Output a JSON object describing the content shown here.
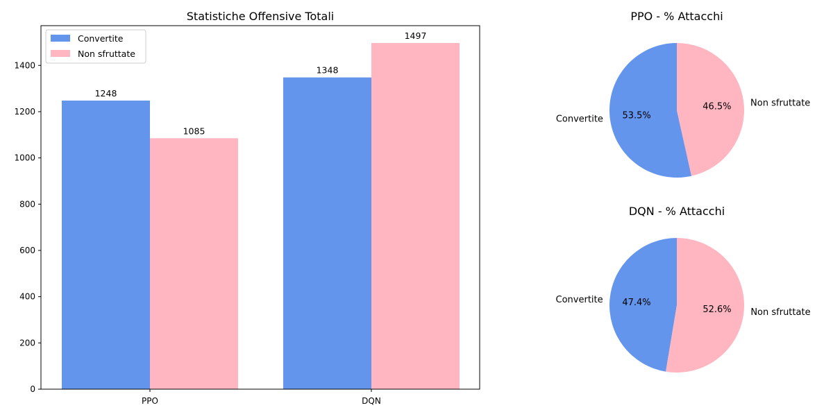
{
  "chart_data": [
    {
      "type": "bar",
      "title": "Statistiche Offensive Totali",
      "xlabel": "",
      "ylabel": "",
      "categories": [
        "PPO",
        "DQN"
      ],
      "series": [
        {
          "name": "Convertite",
          "values": [
            1248,
            1348
          ],
          "color": "#6495ED"
        },
        {
          "name": "Non sfruttate",
          "values": [
            1085,
            1497
          ],
          "color": "#FFB6C1"
        }
      ],
      "ylim": [
        0,
        1571.85
      ],
      "yticks": [
        0,
        200,
        400,
        600,
        800,
        1000,
        1200,
        1400
      ],
      "ytick_labels": [
        "0",
        "200",
        "400",
        "600",
        "800",
        "1000",
        "1200",
        "1400"
      ],
      "data_labels": [
        "1248",
        "1085",
        "1348",
        "1497"
      ],
      "legend": {
        "position": "top-left",
        "entries": [
          "Convertite",
          "Non sfruttate"
        ]
      },
      "grid": false
    },
    {
      "type": "pie",
      "title": "PPO - % Attacchi",
      "labels": [
        "Convertite",
        "Non sfruttate"
      ],
      "values": [
        1248,
        1085
      ],
      "percent_labels": [
        "53.5%",
        "46.5%"
      ],
      "colors": [
        "#6495ED",
        "#FFB6C1"
      ],
      "start_angle_deg": 90
    },
    {
      "type": "pie",
      "title": "DQN - % Attacchi",
      "labels": [
        "Convertite",
        "Non sfruttate"
      ],
      "values": [
        1348,
        1497
      ],
      "percent_labels": [
        "47.4%",
        "52.6%"
      ],
      "colors": [
        "#6495ED",
        "#FFB6C1"
      ],
      "start_angle_deg": 90
    }
  ]
}
